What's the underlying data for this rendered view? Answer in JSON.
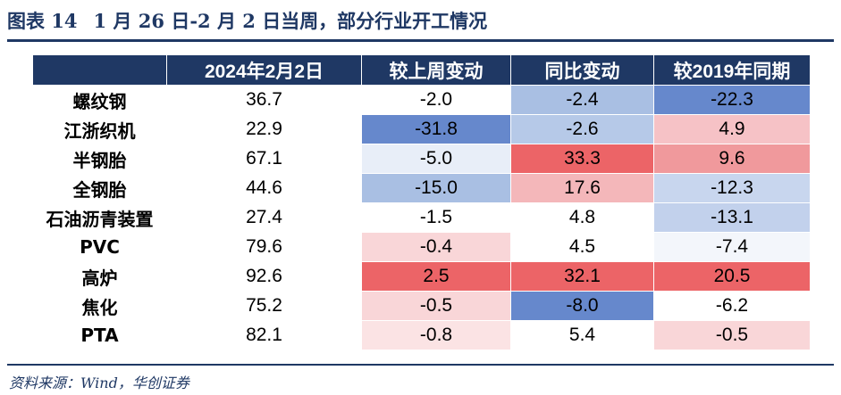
{
  "caption": {
    "label": "图表 14",
    "title": "1 月 26 日-2 月 2 日当周，部分行业开工情况"
  },
  "table": {
    "headers": [
      "",
      "2024年2月2日",
      "较上周变动",
      "同比变动",
      "较2019年同期"
    ],
    "rows": [
      {
        "name": "螺纹钢",
        "values": [
          "36.7",
          "-2.0",
          "-2.4",
          "-22.3"
        ],
        "colors": [
          "#ffffff",
          "#ffffff",
          "#a9bfe3",
          "#6688cc"
        ]
      },
      {
        "name": "江浙织机",
        "values": [
          "22.9",
          "-31.8",
          "-2.6",
          "4.9"
        ],
        "colors": [
          "#ffffff",
          "#6688cc",
          "#b6c9e8",
          "#f6c2c6"
        ]
      },
      {
        "name": "半钢胎",
        "values": [
          "67.1",
          "-5.0",
          "33.3",
          "9.6"
        ],
        "colors": [
          "#ffffff",
          "#e8eef8",
          "#ec6467",
          "#f0999c"
        ]
      },
      {
        "name": "全钢胎",
        "values": [
          "44.6",
          "-15.0",
          "17.6",
          "-12.3"
        ],
        "colors": [
          "#ffffff",
          "#a9bfe3",
          "#f4b7ba",
          "#c8d6ee"
        ]
      },
      {
        "name": "石油沥青装置",
        "values": [
          "27.4",
          "-1.5",
          "4.8",
          "-13.1"
        ],
        "colors": [
          "#ffffff",
          "#ffffff",
          "#ffffff",
          "#c2d1ec"
        ]
      },
      {
        "name": "PVC",
        "values": [
          "79.6",
          "-0.4",
          "4.5",
          "-7.4"
        ],
        "colors": [
          "#ffffff",
          "#f9d6d8",
          "#ffffff",
          "#f3f6fb"
        ]
      },
      {
        "name": "高炉",
        "values": [
          "92.6",
          "2.5",
          "32.1",
          "20.5"
        ],
        "colors": [
          "#ffffff",
          "#ec6467",
          "#ec6467",
          "#ec6467"
        ]
      },
      {
        "name": "焦化",
        "values": [
          "75.2",
          "-0.5",
          "-8.0",
          "-6.2"
        ],
        "colors": [
          "#ffffff",
          "#f9d6d8",
          "#6688cc",
          "#ffffff"
        ]
      },
      {
        "name": "PTA",
        "values": [
          "82.1",
          "-0.8",
          "5.4",
          "-0.5"
        ],
        "colors": [
          "#ffffff",
          "#fbe3e4",
          "#ffffff",
          "#f9d6d8"
        ]
      }
    ]
  },
  "source": "资料来源：Wind，华创证券",
  "theme": {
    "accent": "#1f3864"
  }
}
